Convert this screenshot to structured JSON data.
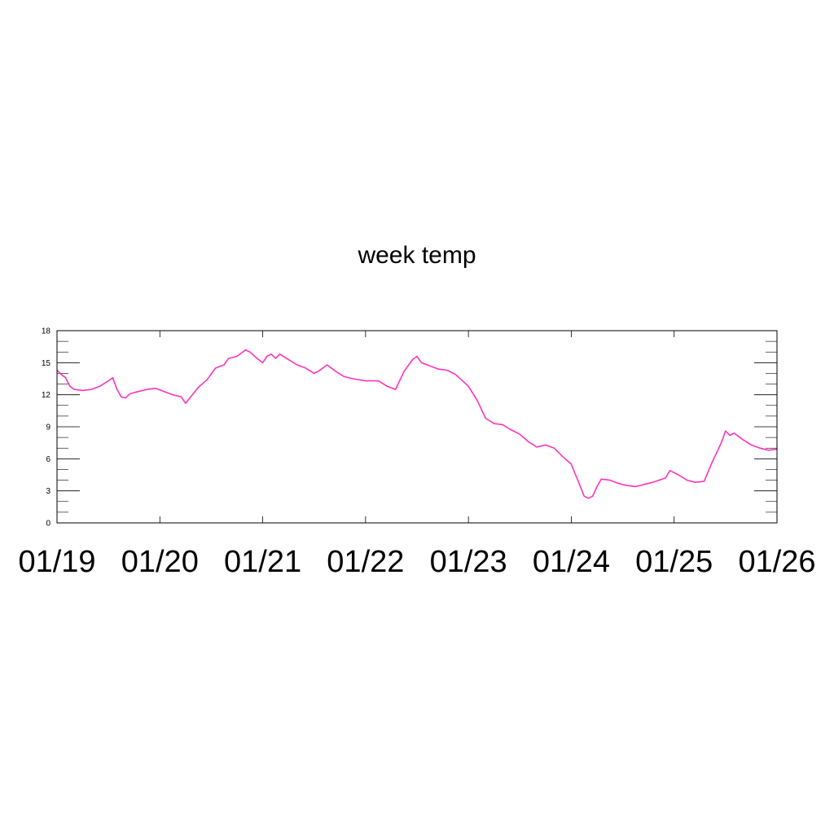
{
  "chart_data": {
    "type": "line",
    "title": "week temp",
    "xlabel": "",
    "ylabel": "",
    "x_range": [
      "2025-01-19",
      "2025-01-26"
    ],
    "x_ticks": [
      "01/19",
      "01/20",
      "01/21",
      "01/22",
      "01/23",
      "01/24",
      "01/25",
      "01/26"
    ],
    "y_ticks": [
      "0",
      "3",
      "6",
      "9",
      "12",
      "15",
      "18"
    ],
    "ylim": [
      0,
      18
    ],
    "grid": false,
    "legend": "none",
    "series": [
      {
        "color": "#ff33bb",
        "points": [
          [
            "2025-01-19 00:00",
            14.3
          ],
          [
            "2025-01-19 01:00",
            13.9
          ],
          [
            "2025-01-19 02:00",
            13.6
          ],
          [
            "2025-01-19 03:00",
            12.8
          ],
          [
            "2025-01-19 04:00",
            12.5
          ],
          [
            "2025-01-19 06:00",
            12.4
          ],
          [
            "2025-01-19 08:00",
            12.5
          ],
          [
            "2025-01-19 10:00",
            12.8
          ],
          [
            "2025-01-19 12:00",
            13.3
          ],
          [
            "2025-01-19 13:00",
            13.6
          ],
          [
            "2025-01-19 14:00",
            12.5
          ],
          [
            "2025-01-19 15:00",
            11.8
          ],
          [
            "2025-01-19 16:00",
            11.7
          ],
          [
            "2025-01-19 17:00",
            12.1
          ],
          [
            "2025-01-19 19:00",
            12.3
          ],
          [
            "2025-01-19 21:00",
            12.5
          ],
          [
            "2025-01-19 23:00",
            12.6
          ],
          [
            "2025-01-20 01:00",
            12.3
          ],
          [
            "2025-01-20 03:00",
            12.0
          ],
          [
            "2025-01-20 05:00",
            11.8
          ],
          [
            "2025-01-20 06:00",
            11.2
          ],
          [
            "2025-01-20 07:00",
            11.7
          ],
          [
            "2025-01-20 09:00",
            12.7
          ],
          [
            "2025-01-20 11:00",
            13.4
          ],
          [
            "2025-01-20 13:00",
            14.5
          ],
          [
            "2025-01-20 15:00",
            14.8
          ],
          [
            "2025-01-20 16:00",
            15.4
          ],
          [
            "2025-01-20 18:00",
            15.6
          ],
          [
            "2025-01-20 20:00",
            16.2
          ],
          [
            "2025-01-20 21:00",
            16.0
          ],
          [
            "2025-01-20 23:00",
            15.3
          ],
          [
            "2025-01-21 00:00",
            15.0
          ],
          [
            "2025-01-21 01:00",
            15.6
          ],
          [
            "2025-01-21 02:00",
            15.8
          ],
          [
            "2025-01-21 03:00",
            15.4
          ],
          [
            "2025-01-21 04:00",
            15.8
          ],
          [
            "2025-01-21 06:00",
            15.3
          ],
          [
            "2025-01-21 08:00",
            14.8
          ],
          [
            "2025-01-21 10:00",
            14.5
          ],
          [
            "2025-01-21 12:00",
            14.0
          ],
          [
            "2025-01-21 13:00",
            14.2
          ],
          [
            "2025-01-21 15:00",
            14.8
          ],
          [
            "2025-01-21 17:00",
            14.2
          ],
          [
            "2025-01-21 19:00",
            13.7
          ],
          [
            "2025-01-21 21:00",
            13.5
          ],
          [
            "2025-01-22 00:00",
            13.3
          ],
          [
            "2025-01-22 03:00",
            13.3
          ],
          [
            "2025-01-22 05:00",
            12.8
          ],
          [
            "2025-01-22 07:00",
            12.5
          ],
          [
            "2025-01-22 09:00",
            14.2
          ],
          [
            "2025-01-22 11:00",
            15.3
          ],
          [
            "2025-01-22 12:00",
            15.6
          ],
          [
            "2025-01-22 13:00",
            15.0
          ],
          [
            "2025-01-22 15:00",
            14.7
          ],
          [
            "2025-01-22 17:00",
            14.4
          ],
          [
            "2025-01-22 19:00",
            14.3
          ],
          [
            "2025-01-22 21:00",
            13.9
          ],
          [
            "2025-01-23 00:00",
            12.8
          ],
          [
            "2025-01-23 02:00",
            11.5
          ],
          [
            "2025-01-23 04:00",
            9.8
          ],
          [
            "2025-01-23 06:00",
            9.3
          ],
          [
            "2025-01-23 08:00",
            9.2
          ],
          [
            "2025-01-23 10:00",
            8.7
          ],
          [
            "2025-01-23 12:00",
            8.3
          ],
          [
            "2025-01-23 14:00",
            7.6
          ],
          [
            "2025-01-23 16:00",
            7.1
          ],
          [
            "2025-01-23 18:00",
            7.3
          ],
          [
            "2025-01-23 20:00",
            7.0
          ],
          [
            "2025-01-23 22:00",
            6.2
          ],
          [
            "2025-01-24 00:00",
            5.5
          ],
          [
            "2025-01-24 01:00",
            4.5
          ],
          [
            "2025-01-24 02:00",
            3.5
          ],
          [
            "2025-01-24 03:00",
            2.5
          ],
          [
            "2025-01-24 04:00",
            2.3
          ],
          [
            "2025-01-24 05:00",
            2.5
          ],
          [
            "2025-01-24 06:00",
            3.4
          ],
          [
            "2025-01-24 07:00",
            4.1
          ],
          [
            "2025-01-24 09:00",
            4.0
          ],
          [
            "2025-01-24 11:00",
            3.7
          ],
          [
            "2025-01-24 13:00",
            3.5
          ],
          [
            "2025-01-24 15:00",
            3.4
          ],
          [
            "2025-01-24 17:00",
            3.6
          ],
          [
            "2025-01-24 19:00",
            3.8
          ],
          [
            "2025-01-24 22:00",
            4.2
          ],
          [
            "2025-01-24 23:00",
            4.9
          ],
          [
            "2025-01-25 01:00",
            4.5
          ],
          [
            "2025-01-25 03:00",
            4.0
          ],
          [
            "2025-01-25 05:00",
            3.8
          ],
          [
            "2025-01-25 07:00",
            3.9
          ],
          [
            "2025-01-25 09:00",
            5.8
          ],
          [
            "2025-01-25 11:00",
            7.5
          ],
          [
            "2025-01-25 12:00",
            8.6
          ],
          [
            "2025-01-25 13:00",
            8.2
          ],
          [
            "2025-01-25 14:00",
            8.4
          ],
          [
            "2025-01-25 16:00",
            7.8
          ],
          [
            "2025-01-25 18:00",
            7.3
          ],
          [
            "2025-01-25 20:00",
            7.0
          ],
          [
            "2025-01-25 22:00",
            6.8
          ],
          [
            "2025-01-26 00:00",
            6.9
          ]
        ]
      }
    ]
  }
}
